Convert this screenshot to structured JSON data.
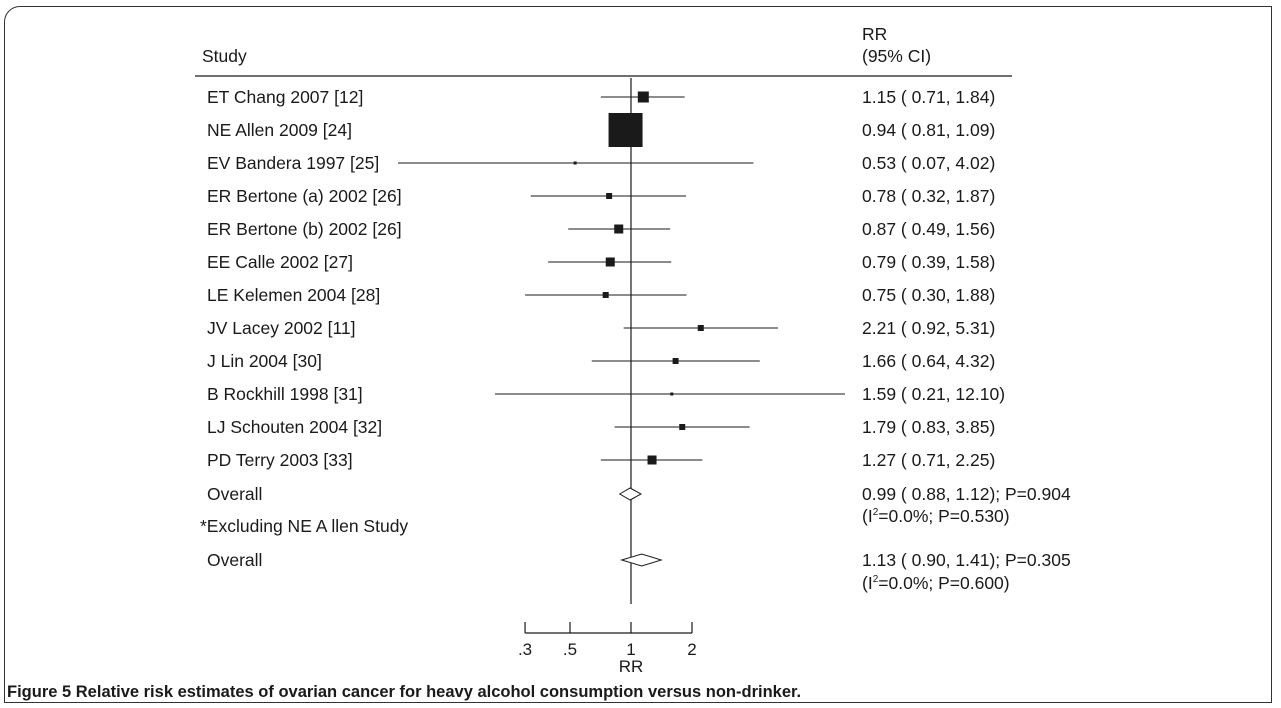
{
  "chart_data": {
    "type": "forest",
    "header": {
      "study": "Study",
      "rr_line1": "RR",
      "rr_line2": "(95% CI)"
    },
    "xlabel": "RR",
    "x_scale": "log",
    "x_ticks": [
      0.3,
      0.5,
      1,
      2
    ],
    "x_tick_labels": [
      ".3",
      ".5",
      "1",
      "2"
    ],
    "reference_line": 1,
    "studies": [
      {
        "label": "ET Chang 2007 [12]",
        "rr": 1.15,
        "lo": 0.71,
        "hi": 1.84,
        "text": "1.15 ( 0.71, 1.84)",
        "box": "large"
      },
      {
        "label": "NE Allen 2009 [24]",
        "rr": 0.94,
        "lo": 0.81,
        "hi": 1.09,
        "text": "0.94 ( 0.81, 1.09)",
        "box": "xlarge"
      },
      {
        "label": "EV Bandera 1997 [25]",
        "rr": 0.53,
        "lo": 0.07,
        "hi": 4.02,
        "text": "0.53 ( 0.07, 4.02)",
        "box": "tiny"
      },
      {
        "label": "ER Bertone (a) 2002 [26]",
        "rr": 0.78,
        "lo": 0.32,
        "hi": 1.87,
        "text": "0.78 ( 0.32, 1.87)",
        "box": "small"
      },
      {
        "label": "ER Bertone (b) 2002 [26]",
        "rr": 0.87,
        "lo": 0.49,
        "hi": 1.56,
        "text": "0.87 ( 0.49, 1.56)",
        "box": "medium"
      },
      {
        "label": "EE Calle 2002 [27]",
        "rr": 0.79,
        "lo": 0.39,
        "hi": 1.58,
        "text": "0.79 ( 0.39, 1.58)",
        "box": "medium"
      },
      {
        "label": "LE Kelemen 2004 [28]",
        "rr": 0.75,
        "lo": 0.3,
        "hi": 1.88,
        "text": "0.75 ( 0.30, 1.88)",
        "box": "small"
      },
      {
        "label": "JV Lacey 2002 [11]",
        "rr": 2.21,
        "lo": 0.92,
        "hi": 5.31,
        "text": "2.21 ( 0.92, 5.31)",
        "box": "small"
      },
      {
        "label": "J Lin 2004 [30]",
        "rr": 1.66,
        "lo": 0.64,
        "hi": 4.32,
        "text": "1.66 ( 0.64, 4.32)",
        "box": "small"
      },
      {
        "label": "B Rockhill 1998 [31]",
        "rr": 1.59,
        "lo": 0.21,
        "hi": 12.1,
        "text": "1.59 ( 0.21, 12.10)",
        "box": "tiny"
      },
      {
        "label": "LJ Schouten 2004 [32]",
        "rr": 1.79,
        "lo": 0.83,
        "hi": 3.85,
        "text": "1.79 ( 0.83, 3.85)",
        "box": "small"
      },
      {
        "label": "PD Terry 2003 [33]",
        "rr": 1.27,
        "lo": 0.71,
        "hi": 2.25,
        "text": "1.27 ( 0.71, 2.25)",
        "box": "medium"
      }
    ],
    "overall": [
      {
        "label": "Overall",
        "rr": 0.99,
        "lo": 0.88,
        "hi": 1.12,
        "text": "0.99 ( 0.88, 1.12); P=0.904",
        "het_prefix": "(I",
        "het_sup": "2",
        "het_suffix": "=0.0%; P=0.530)"
      },
      {
        "note": "*Excluding NE A llen Study",
        "label": "Overall",
        "rr": 1.13,
        "lo": 0.9,
        "hi": 1.41,
        "text": "1.13 ( 0.90, 1.41); P=0.305",
        "het_prefix": "(I",
        "het_sup": "2",
        "het_suffix": "=0.0%; P=0.600)"
      }
    ]
  },
  "caption": {
    "bold": "Figure 5 Relative risk estimates of ovarian cancer for heavy alcohol consumption versus non-drinker."
  }
}
